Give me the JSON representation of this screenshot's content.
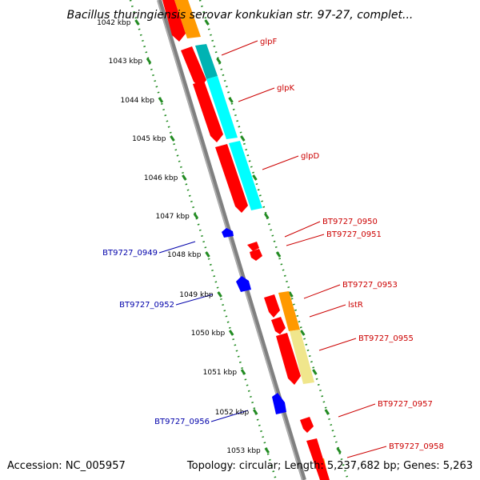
{
  "title": "Bacillus thuringiensis serovar konkukian str. 97-27, complet...",
  "footer": {
    "accession": "Accession: NC_005957",
    "summary": "Topology: circular; Length: 5,237,682 bp; Genes: 5,263"
  },
  "colors": {
    "forward_gene": "#ff0000",
    "reverse_gene": "#0000ff",
    "forward_label": "#cc0000",
    "reverse_label": "#0000aa",
    "backbone": "#808080",
    "ruler": "#228b22",
    "feature_orange": "#ff9900",
    "feature_teal": "#00b3b3",
    "feature_cyan": "#00ffff",
    "feature_khaki": "#f0e68c"
  },
  "ruler_ticks": [
    "1042 kbp",
    "1043 kbp",
    "1044 kbp",
    "1045 kbp",
    "1046 kbp",
    "1047 kbp",
    "1048 kbp",
    "1049 kbp",
    "1050 kbp",
    "1051 kbp",
    "1052 kbp",
    "1053 kbp"
  ],
  "gene_labels": [
    {
      "name": "glpF",
      "strand": "forward"
    },
    {
      "name": "glpK",
      "strand": "forward"
    },
    {
      "name": "glpD",
      "strand": "forward"
    },
    {
      "name": "BT9727_0950",
      "strand": "forward"
    },
    {
      "name": "BT9727_0951",
      "strand": "forward"
    },
    {
      "name": "BT9727_0953",
      "strand": "forward"
    },
    {
      "name": "lstR",
      "strand": "forward"
    },
    {
      "name": "BT9727_0955",
      "strand": "forward"
    },
    {
      "name": "BT9727_0957",
      "strand": "forward"
    },
    {
      "name": "BT9727_0958",
      "strand": "forward"
    },
    {
      "name": "BT9727_0949",
      "strand": "reverse"
    },
    {
      "name": "BT9727_0952",
      "strand": "reverse"
    },
    {
      "name": "BT9727_0956",
      "strand": "reverse"
    }
  ]
}
